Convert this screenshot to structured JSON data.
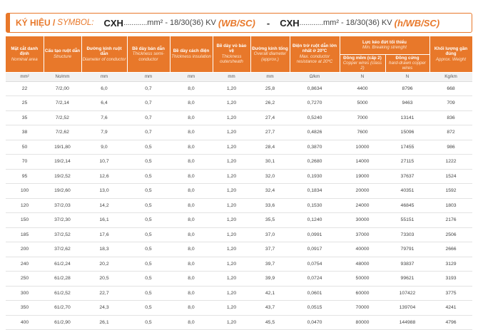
{
  "title": {
    "kyhieu": "KÝ HIỆU /",
    "symbol": "SYMBOL:",
    "code1": "CXH",
    "dots": "............",
    "text1": "mm² - 18/30(36) KV",
    "type1": "(WB/SC)",
    "separator": "-",
    "code2": "CXH",
    "text2": "mm² - 18/30(36) KV",
    "type2": "(h/WB/SC)"
  },
  "headers": {
    "area": {
      "vi": "Mặt cắt danh định",
      "en": "Nominal area"
    },
    "structure": {
      "vi": "Cấu tạo ruột dẫn",
      "en": "Structure"
    },
    "diameter": {
      "vi": "Đường kính ruột dẫn",
      "en": "Diameter of conductor"
    },
    "semi": {
      "vi": "Bề dày bán dẫn",
      "en": "Thickness semi-conductor"
    },
    "insulation": {
      "vi": "Bề dày cách điện",
      "en": "Thickness insulation"
    },
    "sheath": {
      "vi": "Bề dày vỏ bảo vệ",
      "en": "Thickness outersheath"
    },
    "overall": {
      "vi": "Đường kính tổng",
      "en": "Overall diameter (approx.)"
    },
    "resistance": {
      "vi": "Điện trở ruột dẫn lớn nhất ở 20ºC",
      "en": "Max. conductor resistance at 20ºC"
    },
    "strength": {
      "vi": "Lực kéo đứt tối thiểu",
      "en": "Min. Breaking strenght"
    },
    "soft": {
      "vi": "Đồng mềm (cấp 2)",
      "en": "Copper wires (class 2)"
    },
    "hard": {
      "vi": "Đồng cứng",
      "en": "hard-drawn copper wires"
    },
    "weight": {
      "vi": "Khối lượng gần đúng",
      "en": "Approx. Weight"
    }
  },
  "units": [
    "mm²",
    "No/mm",
    "mm",
    "mm",
    "mm",
    "mm",
    "mm",
    "Ω/km",
    "N",
    "N",
    "Kg/km"
  ],
  "rows": [
    [
      "22",
      "7/2,00",
      "6,0",
      "0,7",
      "8,0",
      "1,20",
      "25,8",
      "0,8634",
      "4400",
      "8796",
      "668"
    ],
    [
      "25",
      "7/2,14",
      "6,4",
      "0,7",
      "8,0",
      "1,20",
      "26,2",
      "0,7270",
      "5000",
      "9463",
      "709"
    ],
    [
      "35",
      "7/2,52",
      "7,6",
      "0,7",
      "8,0",
      "1,20",
      "27,4",
      "0,5240",
      "7000",
      "13141",
      "836"
    ],
    [
      "38",
      "7/2,62",
      "7,9",
      "0,7",
      "8,0",
      "1,20",
      "27,7",
      "0,4826",
      "7600",
      "15096",
      "872"
    ],
    [
      "50",
      "19/1,80",
      "9,0",
      "0,5",
      "8,0",
      "1,20",
      "28,4",
      "0,3870",
      "10000",
      "17455",
      "986"
    ],
    [
      "70",
      "19/2,14",
      "10,7",
      "0,5",
      "8,0",
      "1,20",
      "30,1",
      "0,2680",
      "14000",
      "27115",
      "1222"
    ],
    [
      "95",
      "19/2,52",
      "12,6",
      "0,5",
      "8,0",
      "1,20",
      "32,0",
      "0,1930",
      "19000",
      "37637",
      "1524"
    ],
    [
      "100",
      "19/2,60",
      "13,0",
      "0,5",
      "8,0",
      "1,20",
      "32,4",
      "0,1834",
      "20000",
      "40351",
      "1592"
    ],
    [
      "120",
      "37/2,03",
      "14,2",
      "0,5",
      "8,0",
      "1,20",
      "33,6",
      "0,1530",
      "24000",
      "46845",
      "1803"
    ],
    [
      "150",
      "37/2,30",
      "16,1",
      "0,5",
      "8,0",
      "1,20",
      "35,5",
      "0,1240",
      "30000",
      "55151",
      "2176"
    ],
    [
      "185",
      "37/2,52",
      "17,6",
      "0,5",
      "8,0",
      "1,20",
      "37,0",
      "0,0991",
      "37000",
      "73303",
      "2506"
    ],
    [
      "200",
      "37/2,62",
      "18,3",
      "0,5",
      "8,0",
      "1,20",
      "37,7",
      "0,0917",
      "40000",
      "79791",
      "2666"
    ],
    [
      "240",
      "61/2,24",
      "20,2",
      "0,5",
      "8,0",
      "1,20",
      "39,7",
      "0,0754",
      "48000",
      "93837",
      "3129"
    ],
    [
      "250",
      "61/2,28",
      "20,5",
      "0,5",
      "8,0",
      "1,20",
      "39,9",
      "0,0724",
      "50000",
      "99621",
      "3193"
    ],
    [
      "300",
      "61/2,52",
      "22,7",
      "0,5",
      "8,0",
      "1,20",
      "42,1",
      "0,0601",
      "60000",
      "107422",
      "3775"
    ],
    [
      "350",
      "61/2,70",
      "24,3",
      "0,5",
      "8,0",
      "1,20",
      "43,7",
      "0,0515",
      "70000",
      "139704",
      "4241"
    ],
    [
      "400",
      "61/2,90",
      "26,1",
      "0,5",
      "8,0",
      "1,20",
      "45,5",
      "0,0470",
      "80000",
      "144988",
      "4796"
    ]
  ],
  "colors": {
    "accent": "#e8782a",
    "header_text": "#ffffff",
    "units_bg": "#f2f2f2"
  }
}
